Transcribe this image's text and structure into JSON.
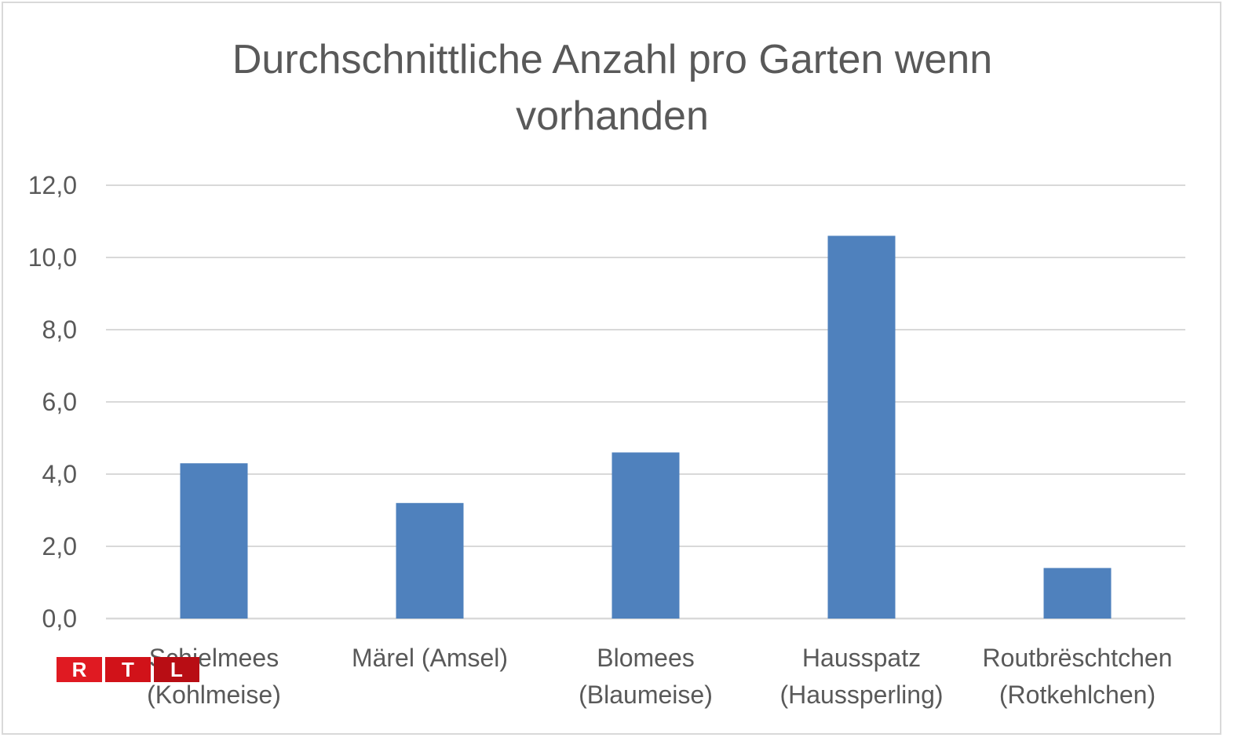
{
  "chart_data": {
    "type": "bar",
    "title": "Durchschnittliche Anzahl pro Garten wenn vorhanden",
    "title_lines": [
      "Durchschnittliche Anzahl pro Garten wenn",
      "vorhanden"
    ],
    "categories": [
      [
        "Schielmees",
        "(Kohlmeise)"
      ],
      [
        "Märel (Amsel)"
      ],
      [
        "Blomees",
        "(Blaumeise)"
      ],
      [
        "Hausspatz",
        "(Haussperling)"
      ],
      [
        "Routbrëschtchen",
        "(Rotkehlchen)"
      ]
    ],
    "values": [
      4.3,
      3.2,
      4.6,
      10.6,
      1.4
    ],
    "ylim": [
      0,
      12
    ],
    "yticks": [
      "0,0",
      "2,0",
      "4,0",
      "6,0",
      "8,0",
      "10,0",
      "12,0"
    ],
    "ytick_values": [
      0,
      2,
      4,
      6,
      8,
      10,
      12
    ],
    "xlabel": "",
    "ylabel": "",
    "grid": true,
    "legend": "none",
    "bar_color": "#4f81bd",
    "grid_color": "#d9d9d9"
  },
  "watermark": {
    "letters": [
      "R",
      "T",
      "L"
    ]
  }
}
